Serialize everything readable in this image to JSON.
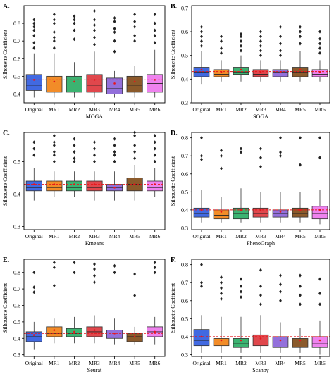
{
  "figure": {
    "x_categories": [
      "Original",
      "MR1",
      "MR2",
      "MR3",
      "MR4",
      "MR5",
      "MR6"
    ],
    "y_axis_label": "Silhouette Coefficient",
    "colors": {
      "boxes": [
        "#4169E1",
        "#F28C28",
        "#3CB371",
        "#E0474C",
        "#9370DB",
        "#8B5A2B",
        "#EE82EE"
      ],
      "reference_line": "#E8141A",
      "mean_marker": "#E8141A",
      "outlier": "#222222"
    }
  },
  "chart_data": [
    {
      "type": "box",
      "panel_label": "A.",
      "xlabel": "MOGA",
      "ylabel": "Silhouette Coefficient",
      "ylim": [
        0.35,
        0.9
      ],
      "yticks": [
        0.4,
        0.5,
        0.6,
        0.7,
        0.8
      ],
      "reference_line": 0.48,
      "categories": [
        "Original",
        "MR1",
        "MR2",
        "MR3",
        "MR4",
        "MR5",
        "MR6"
      ],
      "boxes": [
        {
          "name": "Original",
          "min": 0.38,
          "q1": 0.42,
          "median": 0.45,
          "q3": 0.51,
          "max": 0.63,
          "mean": 0.48,
          "outliers": [
            0.66,
            0.69,
            0.73,
            0.76,
            0.78,
            0.8,
            0.82
          ]
        },
        {
          "name": "MR1",
          "min": 0.38,
          "q1": 0.41,
          "median": 0.44,
          "q3": 0.5,
          "max": 0.63,
          "mean": 0.47,
          "outliers": [
            0.66,
            0.7,
            0.72,
            0.75,
            0.8,
            0.82,
            0.85
          ]
        },
        {
          "name": "MR2",
          "min": 0.38,
          "q1": 0.41,
          "median": 0.44,
          "q3": 0.5,
          "max": 0.58,
          "mean": 0.47,
          "outliers": [
            0.71,
            0.76,
            0.8,
            0.82,
            0.84
          ]
        },
        {
          "name": "MR3",
          "min": 0.38,
          "q1": 0.41,
          "median": 0.45,
          "q3": 0.51,
          "max": 0.64,
          "mean": 0.48,
          "outliers": [
            0.68,
            0.72,
            0.76,
            0.79,
            0.82,
            0.87
          ]
        },
        {
          "name": "MR4",
          "min": 0.38,
          "q1": 0.4,
          "median": 0.43,
          "q3": 0.49,
          "max": 0.53,
          "mean": 0.46,
          "outliers": [
            0.64,
            0.7,
            0.75,
            0.77,
            0.81,
            0.83
          ]
        },
        {
          "name": "MR5",
          "min": 0.38,
          "q1": 0.41,
          "median": 0.45,
          "q3": 0.5,
          "max": 0.56,
          "mean": 0.47,
          "outliers": [
            0.7,
            0.73,
            0.78,
            0.81,
            0.85
          ]
        },
        {
          "name": "MR6",
          "min": 0.38,
          "q1": 0.41,
          "median": 0.46,
          "q3": 0.51,
          "max": 0.65,
          "mean": 0.48,
          "outliers": [
            0.69,
            0.73,
            0.76,
            0.8,
            0.85
          ]
        }
      ]
    },
    {
      "type": "box",
      "panel_label": "B.",
      "xlabel": "SOGA",
      "ylabel": "Silhouette Coefficient",
      "ylim": [
        0.3,
        0.71
      ],
      "yticks": [
        0.3,
        0.4,
        0.5,
        0.6,
        0.7
      ],
      "reference_line": 0.432,
      "categories": [
        "Original",
        "MR1",
        "MR2",
        "MR3",
        "MR4",
        "MR5",
        "MR6"
      ],
      "boxes": [
        {
          "name": "Original",
          "min": 0.38,
          "q1": 0.41,
          "median": 0.43,
          "q3": 0.45,
          "max": 0.52,
          "mean": 0.44,
          "outliers": [
            0.54,
            0.56,
            0.58,
            0.6,
            0.62
          ]
        },
        {
          "name": "MR1",
          "min": 0.39,
          "q1": 0.41,
          "median": 0.42,
          "q3": 0.44,
          "max": 0.48,
          "mean": 0.43,
          "outliers": [
            0.51,
            0.53,
            0.56,
            0.58
          ]
        },
        {
          "name": "MR2",
          "min": 0.39,
          "q1": 0.42,
          "median": 0.43,
          "q3": 0.45,
          "max": 0.5,
          "mean": 0.44,
          "outliers": [
            0.52,
            0.54,
            0.56,
            0.58,
            0.59
          ]
        },
        {
          "name": "MR3",
          "min": 0.39,
          "q1": 0.41,
          "median": 0.42,
          "q3": 0.44,
          "max": 0.48,
          "mean": 0.43,
          "outliers": [
            0.5,
            0.52,
            0.54,
            0.56,
            0.58,
            0.6
          ]
        },
        {
          "name": "MR4",
          "min": 0.39,
          "q1": 0.41,
          "median": 0.43,
          "q3": 0.44,
          "max": 0.48,
          "mean": 0.43,
          "outliers": [
            0.5,
            0.52,
            0.55,
            0.58,
            0.62
          ]
        },
        {
          "name": "MR5",
          "min": 0.39,
          "q1": 0.41,
          "median": 0.43,
          "q3": 0.45,
          "max": 0.52,
          "mean": 0.44,
          "outliers": [
            0.55,
            0.58,
            0.6,
            0.62
          ]
        },
        {
          "name": "MR6",
          "min": 0.39,
          "q1": 0.41,
          "median": 0.42,
          "q3": 0.44,
          "max": 0.48,
          "mean": 0.43,
          "outliers": [
            0.51,
            0.53,
            0.55,
            0.57,
            0.6
          ]
        }
      ]
    },
    {
      "type": "box",
      "panel_label": "C.",
      "xlabel": "Kmeans",
      "ylabel": "Silhouette Coefficient",
      "ylim": [
        0.29,
        0.59
      ],
      "yticks": [
        0.3,
        0.4,
        0.5
      ],
      "reference_line": 0.43,
      "categories": [
        "Original",
        "MR1",
        "MR2",
        "MR3",
        "MR4",
        "MR5",
        "MR6"
      ],
      "boxes": [
        {
          "name": "Original",
          "min": 0.38,
          "q1": 0.41,
          "median": 0.42,
          "q3": 0.44,
          "max": 0.48,
          "mean": 0.43,
          "outliers": [
            0.52,
            0.54,
            0.56
          ]
        },
        {
          "name": "MR1",
          "min": 0.39,
          "q1": 0.41,
          "median": 0.42,
          "q3": 0.44,
          "max": 0.47,
          "mean": 0.43,
          "outliers": [
            0.5,
            0.52,
            0.53,
            0.55,
            0.56,
            0.58
          ]
        },
        {
          "name": "MR2",
          "min": 0.39,
          "q1": 0.41,
          "median": 0.42,
          "q3": 0.44,
          "max": 0.47,
          "mean": 0.43,
          "outliers": [
            0.5,
            0.51,
            0.53,
            0.55,
            0.57
          ]
        },
        {
          "name": "MR3",
          "min": 0.38,
          "q1": 0.41,
          "median": 0.42,
          "q3": 0.44,
          "max": 0.47,
          "mean": 0.43,
          "outliers": [
            0.5,
            0.52,
            0.54,
            0.56
          ]
        },
        {
          "name": "MR4",
          "min": 0.38,
          "q1": 0.41,
          "median": 0.42,
          "q3": 0.43,
          "max": 0.47,
          "mean": 0.42,
          "outliers": [
            0.5,
            0.52,
            0.53,
            0.55,
            0.57
          ]
        },
        {
          "name": "MR5",
          "min": 0.38,
          "q1": 0.41,
          "median": 0.43,
          "q3": 0.45,
          "max": 0.49,
          "mean": 0.43,
          "outliers": [
            0.51,
            0.53,
            0.55,
            0.58,
            0.59
          ]
        },
        {
          "name": "MR6",
          "min": 0.39,
          "q1": 0.41,
          "median": 0.42,
          "q3": 0.44,
          "max": 0.48,
          "mean": 0.43,
          "outliers": [
            0.5,
            0.52,
            0.54,
            0.56,
            0.58
          ]
        }
      ]
    },
    {
      "type": "box",
      "panel_label": "D.",
      "xlabel": "PhenoGraph",
      "ylabel": "Silhouette Coefficient",
      "ylim": [
        0.29,
        0.83
      ],
      "yticks": [
        0.3,
        0.4,
        0.5,
        0.6,
        0.7,
        0.8
      ],
      "reference_line": 0.4,
      "categories": [
        "Original",
        "MR1",
        "MR2",
        "MR3",
        "MR4",
        "MR5",
        "MR6"
      ],
      "boxes": [
        {
          "name": "Original",
          "min": 0.33,
          "q1": 0.36,
          "median": 0.38,
          "q3": 0.41,
          "max": 0.51,
          "mean": 0.4,
          "outliers": [
            0.68,
            0.7,
            0.8
          ]
        },
        {
          "name": "MR1",
          "min": 0.33,
          "q1": 0.35,
          "median": 0.37,
          "q3": 0.4,
          "max": 0.47,
          "mean": 0.39,
          "outliers": [
            0.63,
            0.7,
            0.73
          ]
        },
        {
          "name": "MR2",
          "min": 0.33,
          "q1": 0.35,
          "median": 0.38,
          "q3": 0.41,
          "max": 0.52,
          "mean": 0.4,
          "outliers": [
            0.72,
            0.74
          ]
        },
        {
          "name": "MR3",
          "min": 0.33,
          "q1": 0.36,
          "median": 0.38,
          "q3": 0.41,
          "max": 0.5,
          "mean": 0.4,
          "outliers": [
            0.64,
            0.69,
            0.74
          ]
        },
        {
          "name": "MR4",
          "min": 0.33,
          "q1": 0.36,
          "median": 0.38,
          "q3": 0.4,
          "max": 0.5,
          "mean": 0.39,
          "outliers": [
            0.7,
            0.72,
            0.8
          ]
        },
        {
          "name": "MR5",
          "min": 0.33,
          "q1": 0.36,
          "median": 0.38,
          "q3": 0.41,
          "max": 0.5,
          "mean": 0.4,
          "outliers": [
            0.65,
            0.8
          ]
        },
        {
          "name": "MR6",
          "min": 0.32,
          "q1": 0.35,
          "median": 0.38,
          "q3": 0.42,
          "max": 0.51,
          "mean": 0.4,
          "outliers": [
            0.69,
            0.8
          ]
        }
      ]
    },
    {
      "type": "box",
      "panel_label": "E.",
      "xlabel": "Seurat",
      "ylabel": "Silhouette Coefficient",
      "ylim": [
        0.29,
        0.88
      ],
      "yticks": [
        0.3,
        0.4,
        0.5,
        0.6,
        0.7,
        0.8
      ],
      "reference_line": 0.43,
      "categories": [
        "Original",
        "MR1",
        "MR2",
        "MR3",
        "MR4",
        "MR5",
        "MR6"
      ],
      "boxes": [
        {
          "name": "Original",
          "min": 0.33,
          "q1": 0.38,
          "median": 0.41,
          "q3": 0.44,
          "max": 0.5,
          "mean": 0.42,
          "outliers": [
            0.68,
            0.71,
            0.8
          ]
        },
        {
          "name": "MR1",
          "min": 0.37,
          "q1": 0.41,
          "median": 0.43,
          "q3": 0.47,
          "max": 0.52,
          "mean": 0.45,
          "outliers": [
            0.72,
            0.83,
            0.86
          ]
        },
        {
          "name": "MR2",
          "min": 0.37,
          "q1": 0.41,
          "median": 0.43,
          "q3": 0.46,
          "max": 0.53,
          "mean": 0.44,
          "outliers": [
            0.8,
            0.86
          ]
        },
        {
          "name": "MR3",
          "min": 0.37,
          "q1": 0.41,
          "median": 0.44,
          "q3": 0.47,
          "max": 0.54,
          "mean": 0.45,
          "outliers": [
            0.74,
            0.78,
            0.82,
            0.85
          ]
        },
        {
          "name": "MR4",
          "min": 0.36,
          "q1": 0.4,
          "median": 0.42,
          "q3": 0.45,
          "max": 0.52,
          "mean": 0.43,
          "outliers": [
            0.8,
            0.84
          ]
        },
        {
          "name": "MR5",
          "min": 0.36,
          "q1": 0.38,
          "median": 0.41,
          "q3": 0.43,
          "max": 0.47,
          "mean": 0.41,
          "outliers": [
            0.66,
            0.79
          ]
        },
        {
          "name": "MR6",
          "min": 0.36,
          "q1": 0.41,
          "median": 0.44,
          "q3": 0.47,
          "max": 0.53,
          "mean": 0.44,
          "outliers": [
            0.8,
            0.83,
            0.86
          ]
        }
      ]
    },
    {
      "type": "box",
      "panel_label": "F.",
      "xlabel": "Scanpy",
      "ylabel": "Silhouette Coefficient",
      "ylim": [
        0.29,
        0.83
      ],
      "yticks": [
        0.3,
        0.4,
        0.5,
        0.6,
        0.7,
        0.8
      ],
      "reference_line": 0.4,
      "categories": [
        "Original",
        "MR1",
        "MR2",
        "MR3",
        "MR4",
        "MR5",
        "MR6"
      ],
      "boxes": [
        {
          "name": "Original",
          "min": 0.31,
          "q1": 0.35,
          "median": 0.38,
          "q3": 0.44,
          "max": 0.52,
          "mean": 0.4,
          "outliers": [
            0.68,
            0.7,
            0.8
          ]
        },
        {
          "name": "MR1",
          "min": 0.31,
          "q1": 0.35,
          "median": 0.37,
          "q3": 0.39,
          "max": 0.51,
          "mean": 0.38,
          "outliers": [
            0.61,
            0.64,
            0.67,
            0.7,
            0.73
          ]
        },
        {
          "name": "MR2",
          "min": 0.31,
          "q1": 0.34,
          "median": 0.36,
          "q3": 0.39,
          "max": 0.51,
          "mean": 0.38,
          "outliers": [
            0.62,
            0.65,
            0.68,
            0.72
          ]
        },
        {
          "name": "MR3",
          "min": 0.31,
          "q1": 0.35,
          "median": 0.37,
          "q3": 0.41,
          "max": 0.52,
          "mean": 0.39,
          "outliers": [
            0.58,
            0.63,
            0.68,
            0.77
          ]
        },
        {
          "name": "MR4",
          "min": 0.31,
          "q1": 0.34,
          "median": 0.37,
          "q3": 0.4,
          "max": 0.48,
          "mean": 0.38,
          "outliers": [
            0.6,
            0.65,
            0.69,
            0.74
          ]
        },
        {
          "name": "MR5",
          "min": 0.31,
          "q1": 0.34,
          "median": 0.37,
          "q3": 0.39,
          "max": 0.45,
          "mean": 0.38,
          "outliers": [
            0.58,
            0.63,
            0.68,
            0.74
          ]
        },
        {
          "name": "MR6",
          "min": 0.3,
          "q1": 0.34,
          "median": 0.36,
          "q3": 0.4,
          "max": 0.49,
          "mean": 0.38,
          "outliers": [
            0.58,
            0.64,
            0.72
          ]
        }
      ]
    }
  ]
}
